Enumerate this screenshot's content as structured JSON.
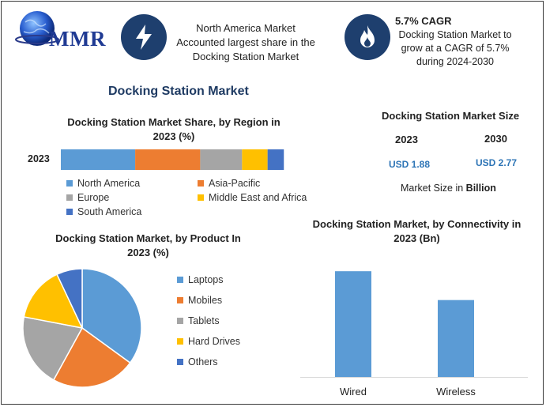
{
  "header": {
    "logo_text": "MMR",
    "info1": [
      "North America Market",
      "Accounted largest share in the",
      "Docking Station Market"
    ],
    "info2_title": "5.7% CAGR",
    "info2": [
      "Docking Station Market to",
      "grow at a CAGR of 5.7%",
      "during 2024-2030"
    ]
  },
  "main_title": "Docking Station Market",
  "size_panel": {
    "title": "Docking Station Market Size",
    "year1": "2023",
    "year2": "2030",
    "value1": "USD 1.88",
    "value2": "USD 2.77",
    "note_prefix": "Market Size in ",
    "note_unit": "Billion"
  },
  "colors": {
    "blue": "#5b9bd5",
    "orange": "#ed7d31",
    "gray": "#a5a5a5",
    "yellow": "#ffc000",
    "darkblue": "#4472c4",
    "title": "#1f3b63",
    "value": "#2e75b6"
  },
  "chart_data": [
    {
      "type": "bar",
      "orientation": "horizontal-stacked",
      "title": "Docking Station Market Share, by Region in 2023 (%)",
      "categories": [
        "2023"
      ],
      "series": [
        {
          "name": "North America",
          "values": [
            32
          ]
        },
        {
          "name": "Asia-Pacific",
          "values": [
            28
          ]
        },
        {
          "name": "Europe",
          "values": [
            18
          ]
        },
        {
          "name": "Middle East and Africa",
          "values": [
            11
          ]
        },
        {
          "name": "South America",
          "values": [
            7
          ]
        }
      ],
      "xlim": [
        0,
        100
      ]
    },
    {
      "type": "pie",
      "title": "Docking Station Market, by Product In 2023 (%)",
      "labels": [
        "Laptops",
        "Mobiles",
        "Tablets",
        "Hard Drives",
        "Others"
      ],
      "values": [
        35,
        23,
        20,
        15,
        7
      ]
    },
    {
      "type": "bar",
      "title": "Docking Station Market, by Connectivity in 2023 (Bn)",
      "categories": [
        "Wired",
        "Wireless"
      ],
      "values": [
        1.1,
        0.8
      ],
      "ylim": [
        0,
        1.2
      ]
    }
  ]
}
